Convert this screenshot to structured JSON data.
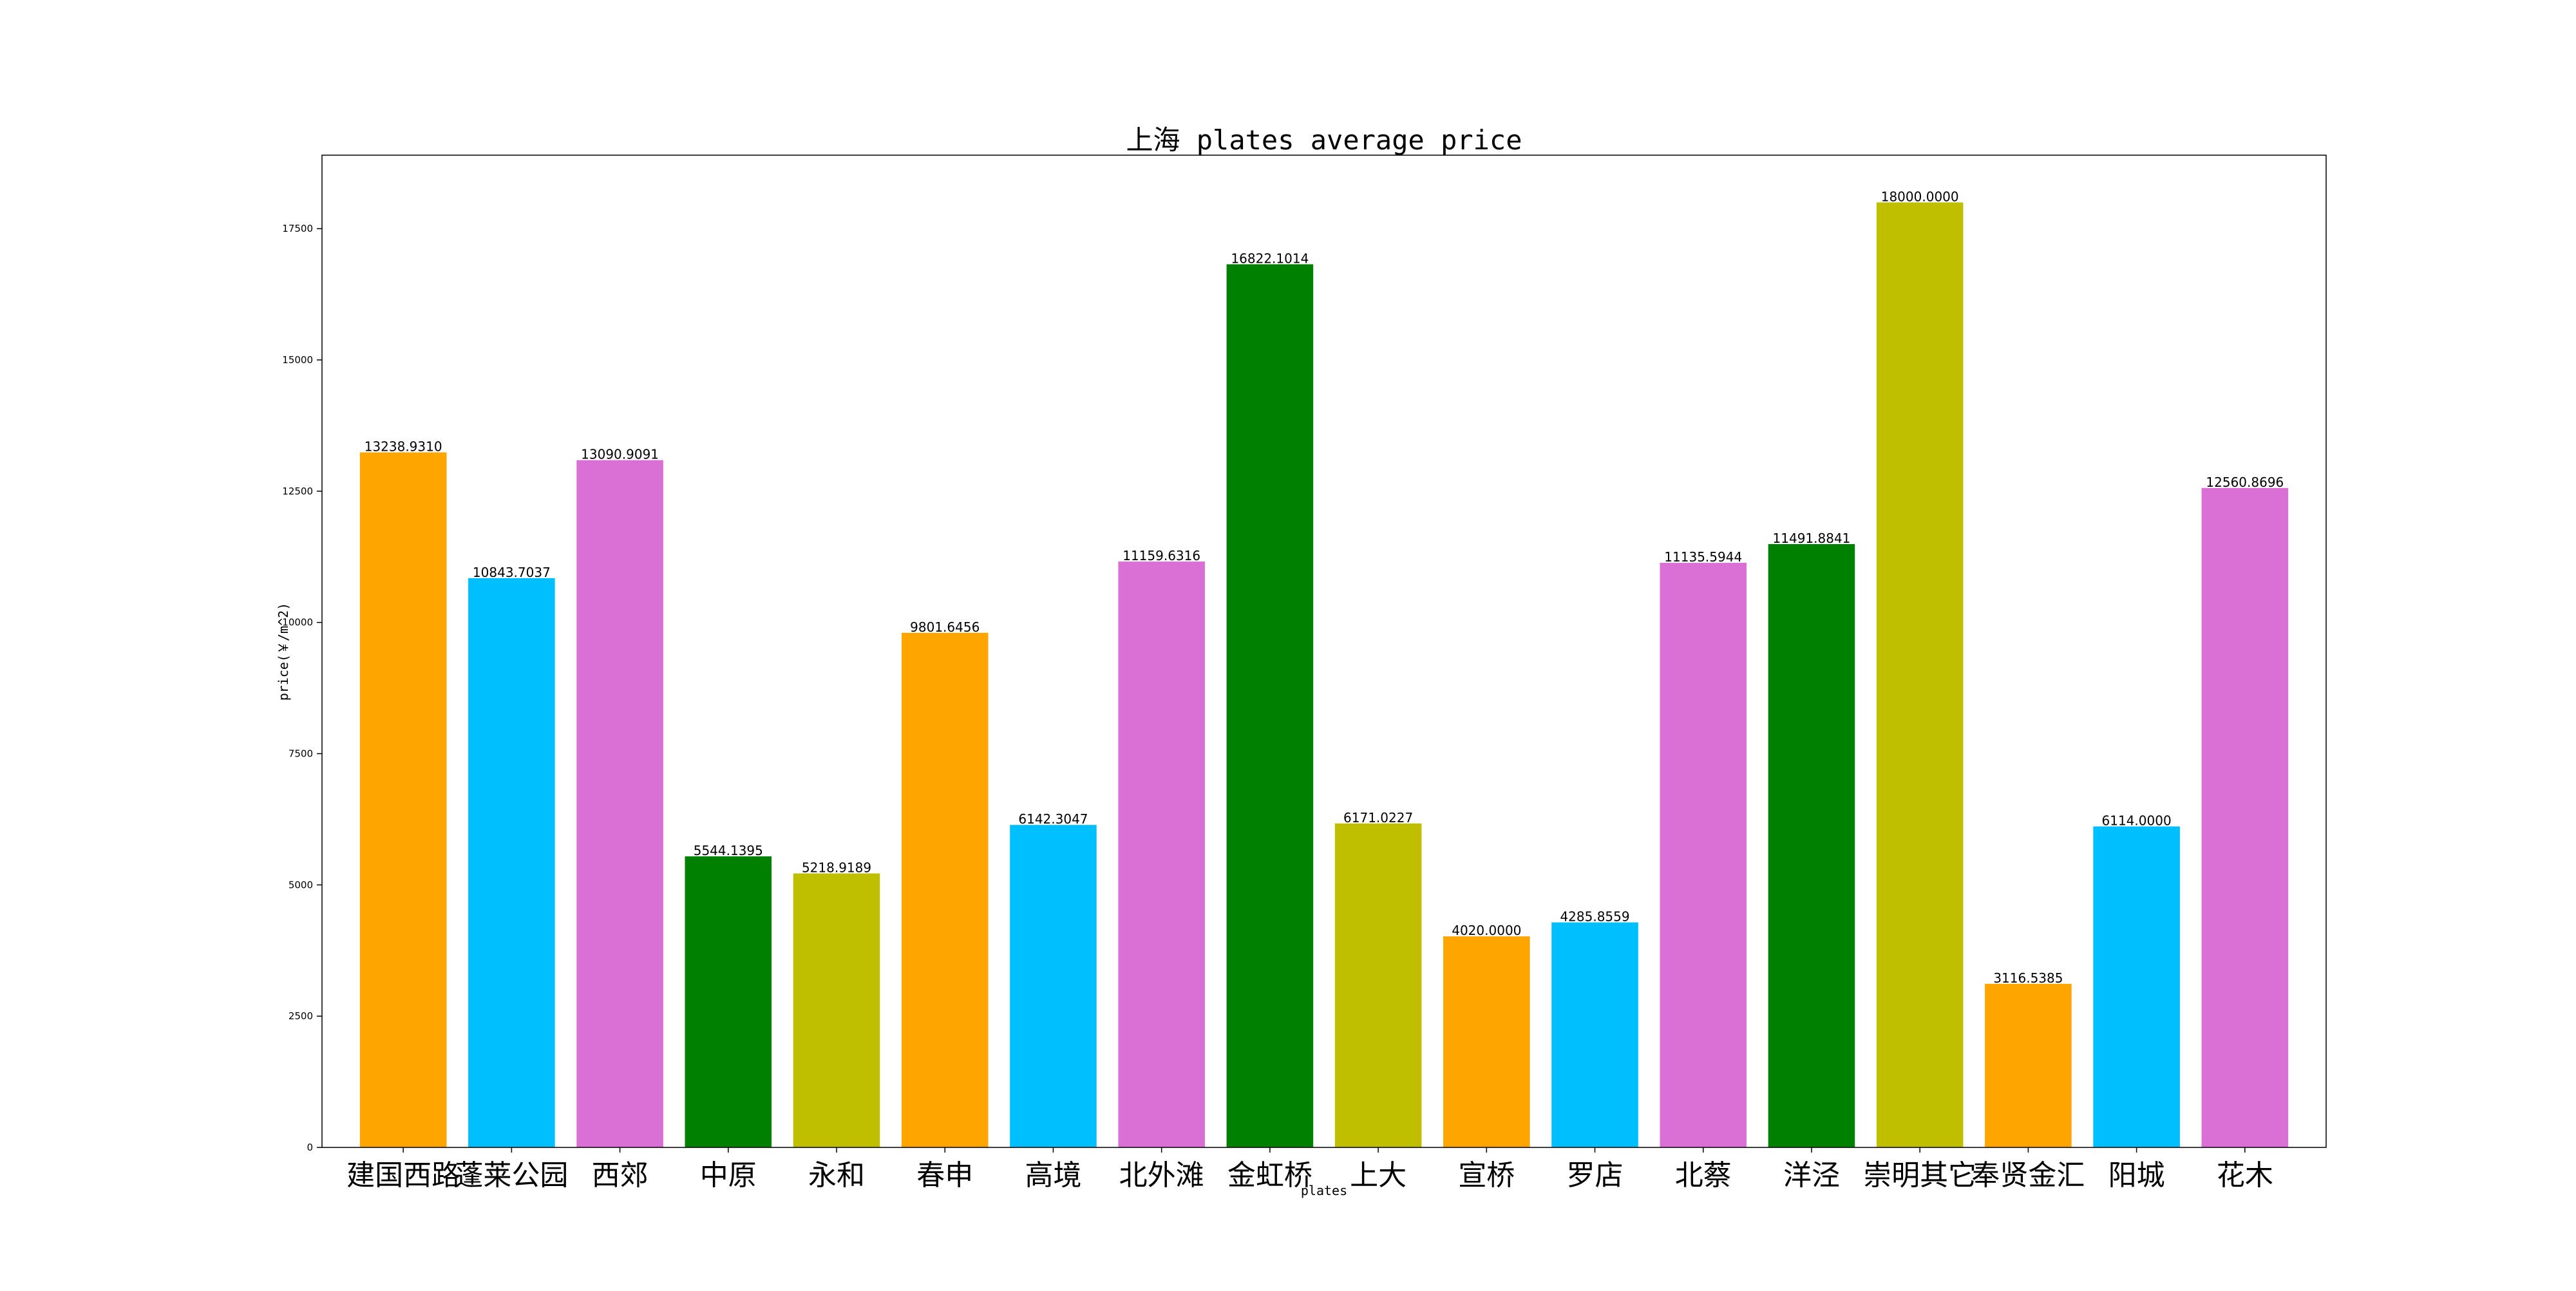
{
  "chart_data": {
    "type": "bar",
    "title": "上海 plates average price",
    "xlabel": "plates",
    "ylabel": "price(￥/m^2)",
    "categories": [
      "建国西路",
      "蓬莱公园",
      "西郊",
      "中原",
      "永和",
      "春申",
      "高境",
      "北外滩",
      "金虹桥",
      "上大",
      "宣桥",
      "罗店",
      "北蔡",
      "洋泾",
      "崇明其它",
      "奉贤金汇",
      "阳城",
      "花木"
    ],
    "values": [
      13238.931,
      10843.7037,
      13090.9091,
      5544.1395,
      5218.9189,
      9801.6456,
      6142.3047,
      11159.6316,
      16822.1014,
      6171.0227,
      4020.0,
      4285.8559,
      11135.5944,
      11491.8841,
      18000.0,
      3116.5385,
      6114.0,
      12560.8696
    ],
    "value_labels": [
      "13238.9310",
      "10843.7037",
      "13090.9091",
      "5544.1395",
      "5218.9189",
      "9801.6456",
      "6142.3047",
      "11159.6316",
      "16822.1014",
      "6171.0227",
      "4020.0000",
      "4285.8559",
      "11135.5944",
      "11491.8841",
      "18000.0000",
      "3116.5385",
      "6114.0000",
      "12560.8696"
    ],
    "colors": [
      "#FFA500",
      "#00BFFF",
      "#DA70D6",
      "#008000",
      "#BFBF00",
      "#FFA500",
      "#00BFFF",
      "#DA70D6",
      "#008000",
      "#BFBF00",
      "#FFA500",
      "#00BFFF",
      "#DA70D6",
      "#008000",
      "#BFBF00",
      "#FFA500",
      "#00BFFF",
      "#DA70D6"
    ],
    "yticks": [
      0,
      2500,
      5000,
      7500,
      10000,
      12500,
      15000,
      17500
    ],
    "ytick_labels": [
      "0",
      "2500",
      "5000",
      "7500",
      "10000",
      "12500",
      "15000",
      "17500"
    ],
    "ylim": [
      0,
      18900
    ],
    "grid": false,
    "legend": false
  }
}
